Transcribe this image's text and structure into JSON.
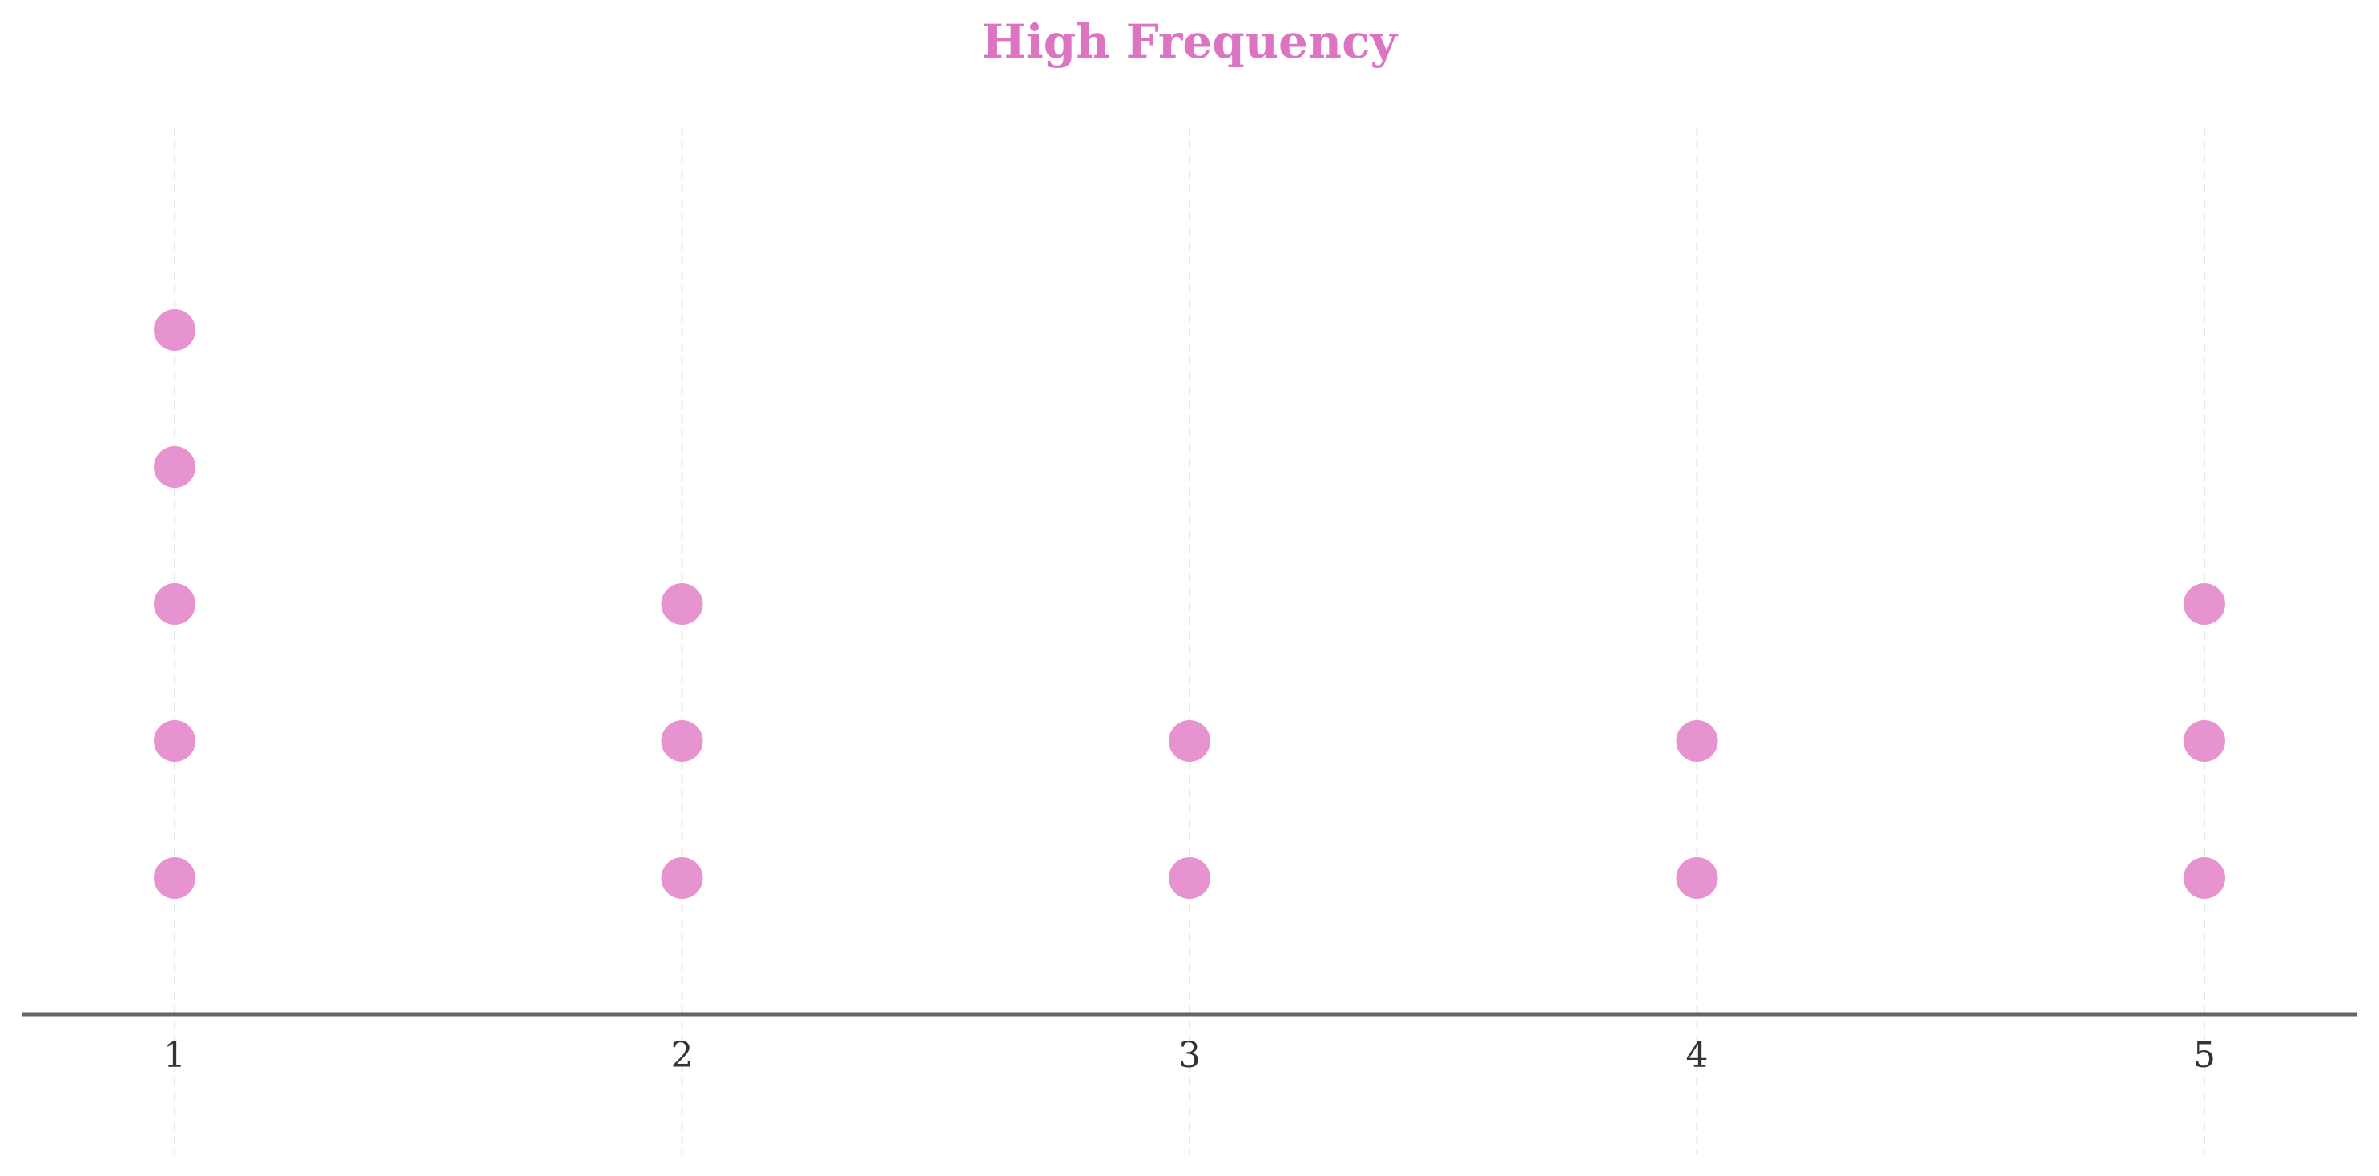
{
  "chart_data": {
    "type": "scatter",
    "title": "High Frequency",
    "xlabel": "",
    "ylabel": "",
    "x_ticks": [
      "1",
      "2",
      "3",
      "4",
      "5"
    ],
    "counts": [
      5,
      3,
      2,
      2,
      3
    ],
    "xlim": [
      0.7,
      5.3
    ],
    "grid": "vertical dashed",
    "colors": {
      "dot": "#e693cf",
      "title": "#dd74c2",
      "axis": "#666666",
      "grid": "#e6e6e6"
    }
  }
}
